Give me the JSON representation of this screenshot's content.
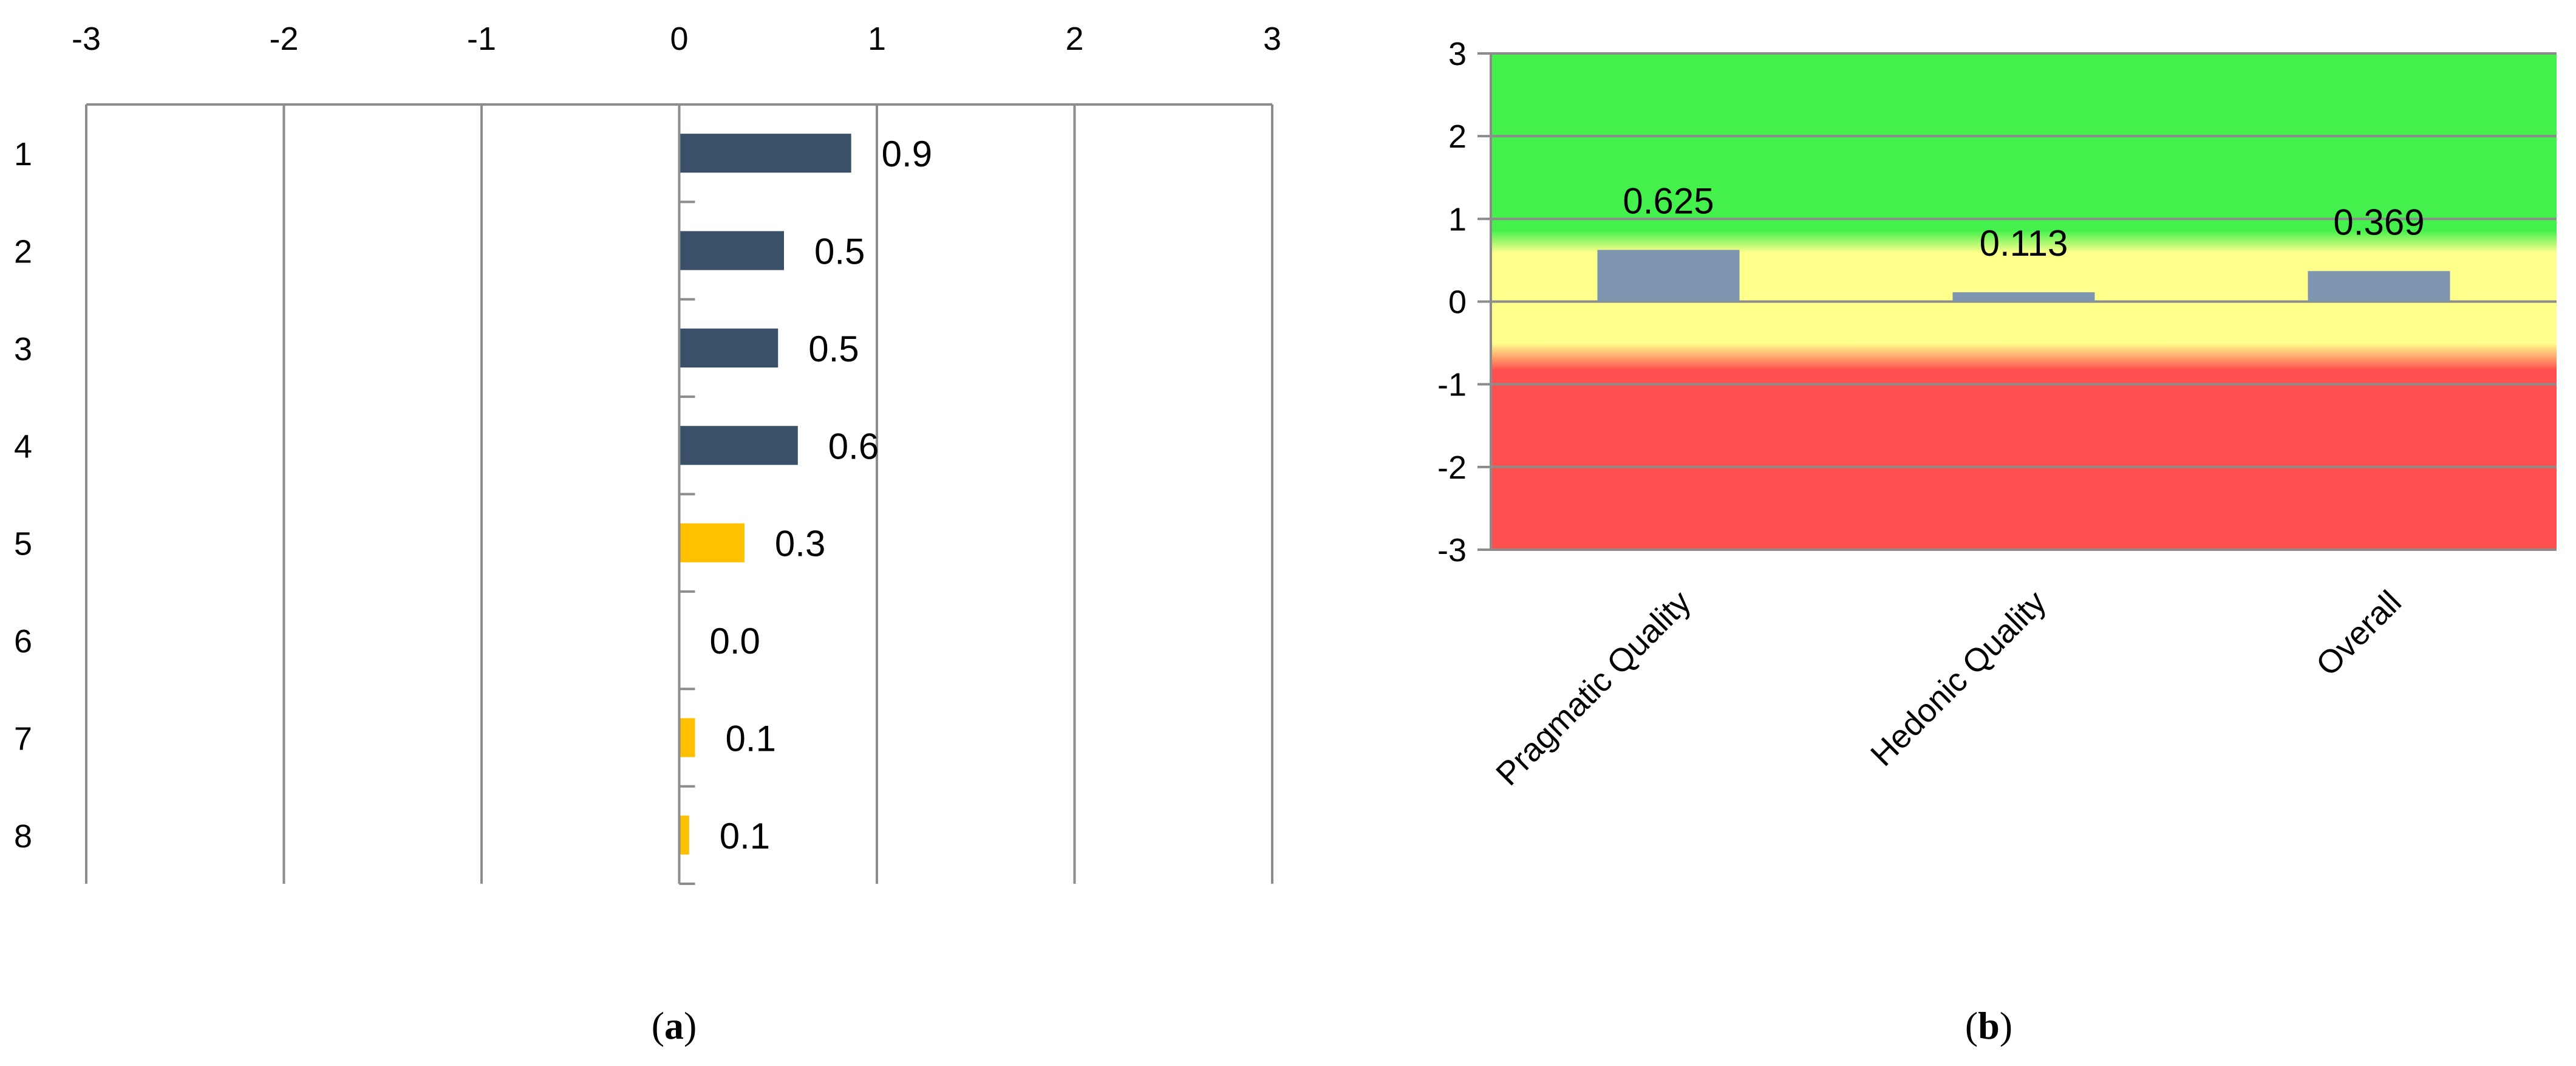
{
  "chart_data": [
    {
      "type": "bar",
      "orientation": "horizontal",
      "categories": [
        "1",
        "2",
        "3",
        "4",
        "5",
        "6",
        "7",
        "8"
      ],
      "values": [
        0.87,
        0.53,
        0.5,
        0.6,
        0.33,
        0.0,
        0.08,
        0.05
      ],
      "data_labels": [
        "0.9",
        "0.5",
        "0.5",
        "0.6",
        "0.3",
        "0.0",
        "0.1",
        "0.1"
      ],
      "bar_colors": [
        "#3a5069",
        "#3a5069",
        "#3a5069",
        "#3a5069",
        "#ffc000",
        "#ffc000",
        "#ffc000",
        "#ffc000"
      ],
      "xlim": [
        -3,
        3
      ],
      "x_ticks": [
        "-3",
        "-2",
        "-1",
        "0",
        "1",
        "2",
        "3"
      ],
      "grid": "vertical",
      "title": "",
      "xlabel": "",
      "ylabel": "",
      "caption": {
        "open": "(",
        "letter": "a",
        "close": ")"
      }
    },
    {
      "type": "bar",
      "categories": [
        "Pragmatic Quality",
        "Hedonic Quality",
        "Overall"
      ],
      "values": [
        0.625,
        0.113,
        0.369
      ],
      "data_labels": [
        "0.625",
        "0.113",
        "0.369"
      ],
      "bar_color": "#7f96b0",
      "ylim": [
        -3,
        3
      ],
      "y_ticks": [
        "3",
        "2",
        "1",
        "0",
        "-1",
        "-2",
        "-3"
      ],
      "grid": "horizontal",
      "bands": [
        {
          "from": 0.8,
          "to": 3,
          "color": "#44f04c"
        },
        {
          "from": -0.8,
          "to": 0.8,
          "color": "#ffff8c"
        },
        {
          "from": -3,
          "to": -0.8,
          "color": "#ff5050"
        }
      ],
      "title": "",
      "xlabel": "",
      "ylabel": "",
      "caption": {
        "open": "(",
        "letter": "b",
        "close": ")"
      }
    }
  ]
}
